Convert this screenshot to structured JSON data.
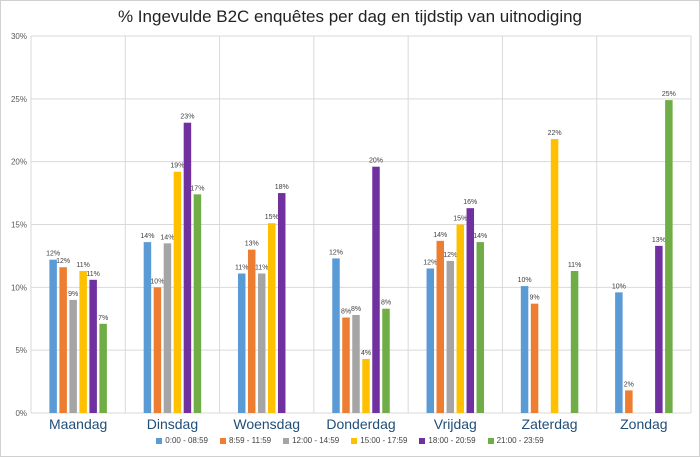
{
  "chart_data": {
    "type": "bar",
    "title": "% Ingevulde B2C enquêtes per dag en tijdstip van uitnodiging",
    "xlabel": "",
    "ylabel": "",
    "ylim": [
      0,
      30
    ],
    "yticks": [
      "0%",
      "5%",
      "10%",
      "15%",
      "20%",
      "25%",
      "30%"
    ],
    "grid": true,
    "legend_position": "bottom",
    "categories": [
      "Maandag",
      "Dinsdag",
      "Woensdag",
      "Donderdag",
      "Vrijdag",
      "Zaterdag",
      "Zondag"
    ],
    "series": [
      {
        "name": "0:00 - 08:59",
        "color": "#5b9bd5",
        "values": [
          12.2,
          13.6,
          11.1,
          12.3,
          11.5,
          10.1,
          9.6
        ],
        "labels": [
          "12%",
          "14%",
          "11%",
          "12%",
          "12%",
          "10%",
          "10%"
        ]
      },
      {
        "name": "8:59 - 11:59",
        "color": "#ed7d31",
        "values": [
          11.6,
          10.0,
          13.0,
          7.6,
          13.7,
          8.7,
          1.8
        ],
        "labels": [
          "12%",
          "10%",
          "13%",
          "8%",
          "14%",
          "9%",
          "2%"
        ]
      },
      {
        "name": "12:00 - 14:59",
        "color": "#a5a5a5",
        "values": [
          9.0,
          13.5,
          11.1,
          7.8,
          12.1,
          null,
          null
        ],
        "labels": [
          "9%",
          "14%",
          "11%",
          "8%",
          "12%",
          "",
          ""
        ]
      },
      {
        "name": "15:00 - 17:59",
        "color": "#ffc000",
        "values": [
          11.3,
          19.2,
          15.1,
          4.3,
          15.0,
          21.8,
          null
        ],
        "labels": [
          "11%",
          "19%",
          "15%",
          "4%",
          "15%",
          "22%",
          ""
        ]
      },
      {
        "name": "18:00 - 20:59",
        "color": "#7030a0",
        "values": [
          10.6,
          23.1,
          17.5,
          19.6,
          16.3,
          null,
          13.3
        ],
        "labels": [
          "11%",
          "23%",
          "18%",
          "20%",
          "16%",
          "",
          "13%"
        ]
      },
      {
        "name": "21:00 - 23:59",
        "color": "#70ad47",
        "values": [
          7.1,
          17.4,
          null,
          8.3,
          13.6,
          11.3,
          24.9
        ],
        "labels": [
          "7%",
          "17%",
          "",
          "8%",
          "14%",
          "11%",
          "25%"
        ]
      }
    ]
  },
  "colors": {
    "category_label": "#1f4e79",
    "grid": "#d9d9d9",
    "tick_label": "#595959",
    "data_label": "#404040"
  }
}
